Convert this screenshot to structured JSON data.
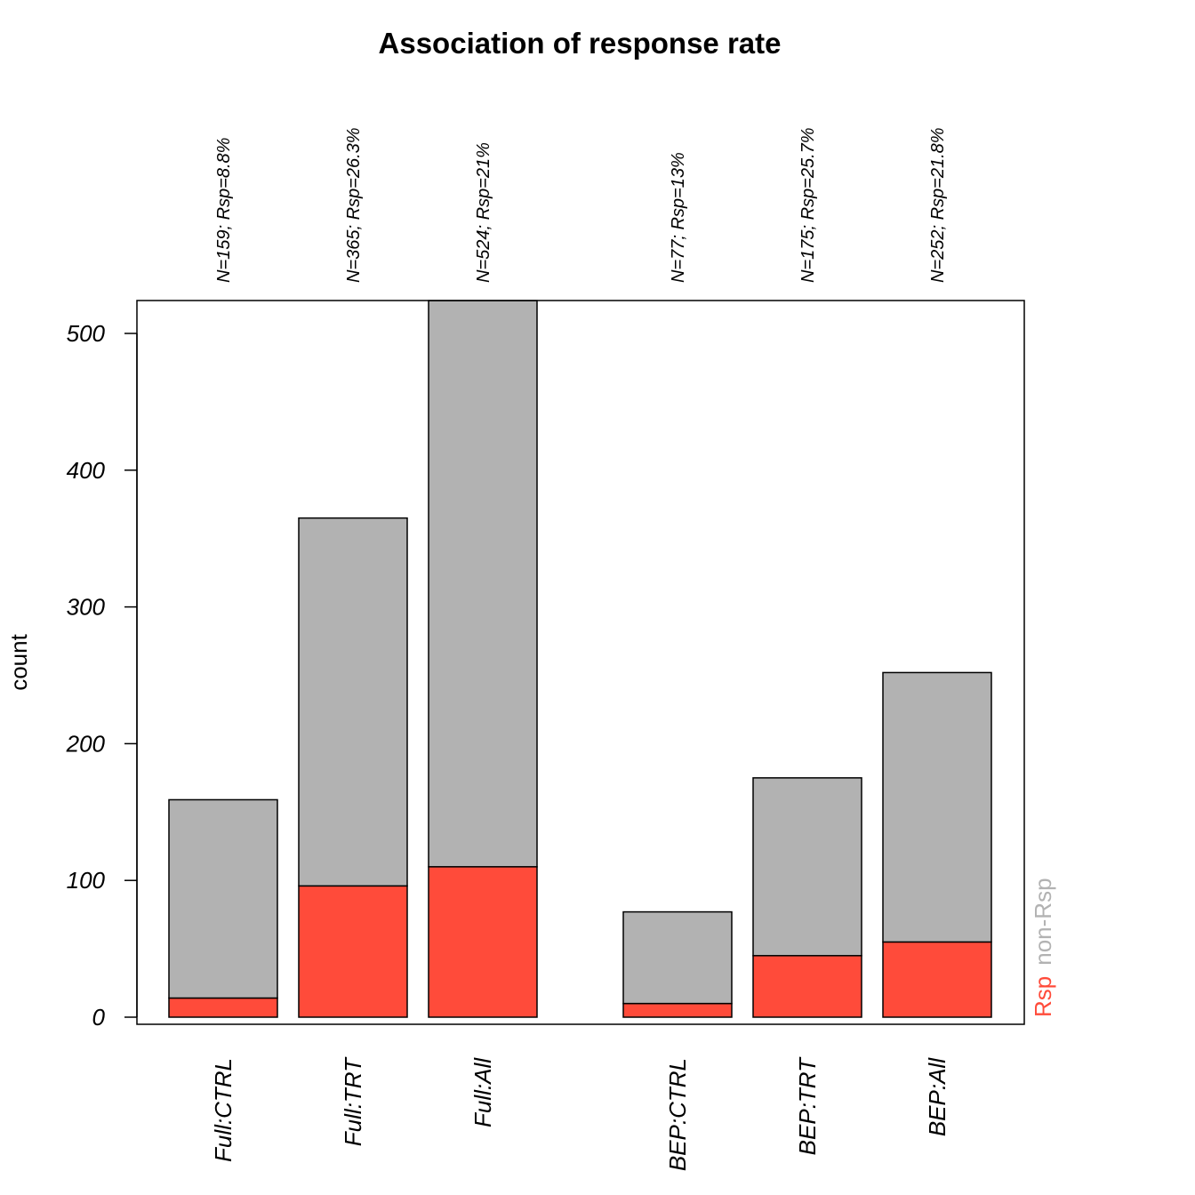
{
  "chart_data": {
    "type": "bar",
    "stacked": true,
    "title": "Association of response rate",
    "ylabel": "count",
    "ylim": [
      0,
      524
    ],
    "yticks": [
      0,
      100,
      200,
      300,
      400,
      500
    ],
    "categories": [
      "Full:CTRL",
      "Full:TRT",
      "Full:All",
      "BEP:CTRL",
      "BEP:TRT",
      "BEP:All"
    ],
    "groups": [
      [
        0,
        1,
        2
      ],
      [
        3,
        4,
        5
      ]
    ],
    "top_labels": [
      "N=159; Rsp=8.8%",
      "N=365; Rsp=26.3%",
      "N=524; Rsp=21%",
      "N=77; Rsp=13%",
      "N=175; Rsp=25.7%",
      "N=252; Rsp=21.8%"
    ],
    "series": [
      {
        "name": "Rsp",
        "color": "#FF4B3A",
        "values": [
          14,
          96,
          110,
          10,
          45,
          55
        ]
      },
      {
        "name": "non-Rsp",
        "color": "#B2B2B2",
        "values": [
          145,
          269,
          414,
          67,
          130,
          197
        ]
      }
    ],
    "legend": {
      "position": "right-bottom",
      "orientation": "vertical"
    }
  }
}
